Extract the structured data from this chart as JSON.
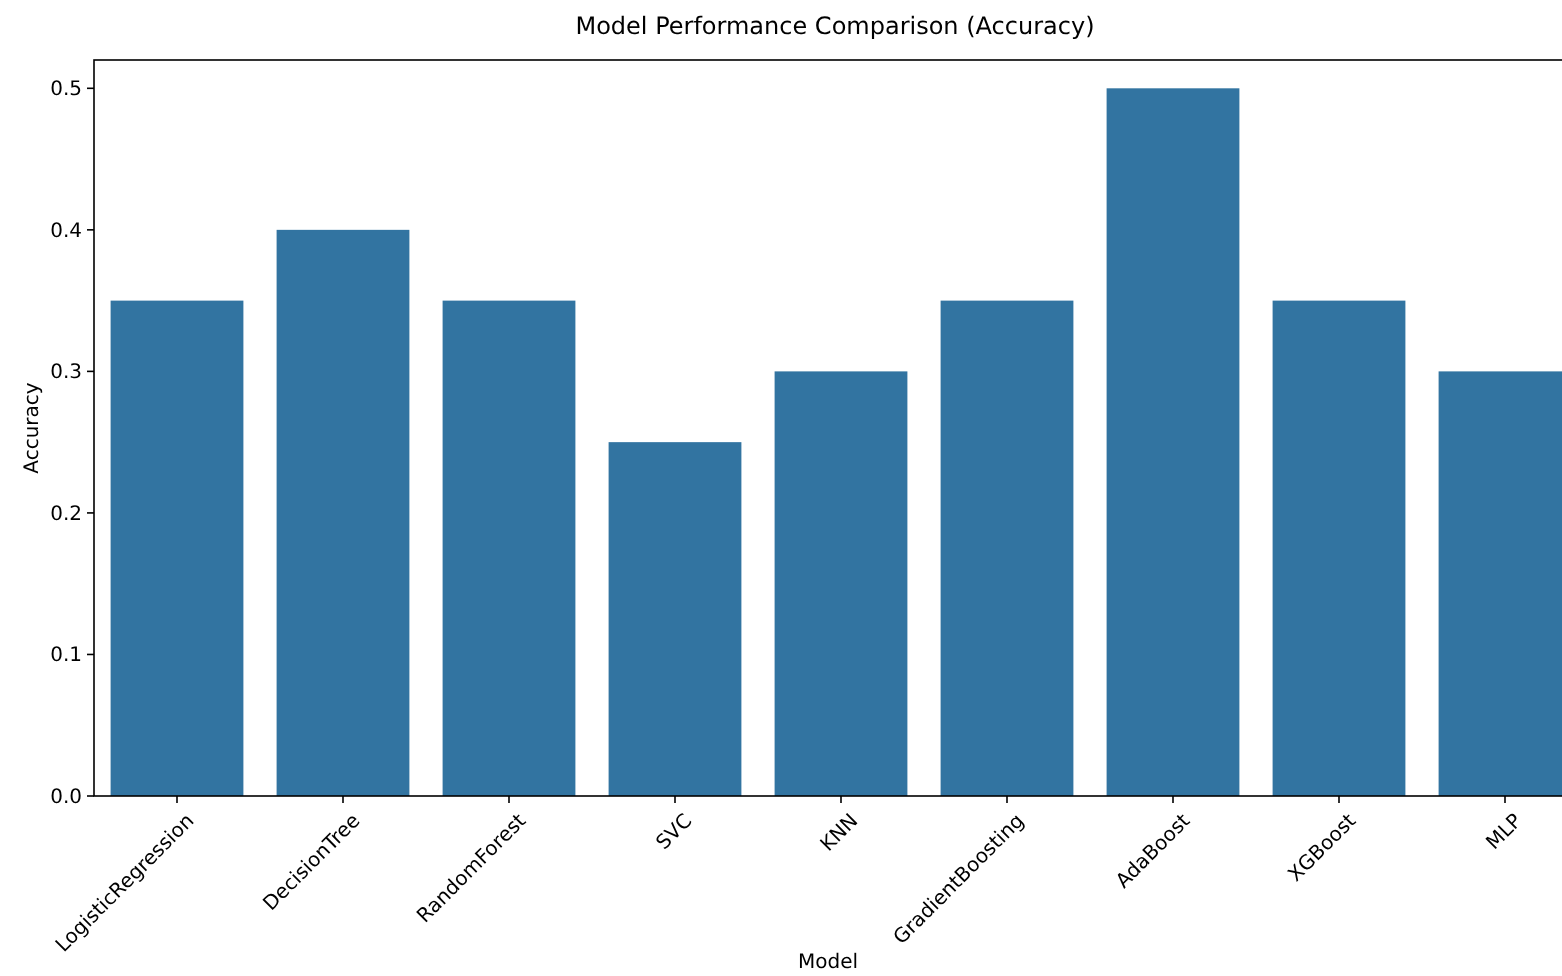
{
  "chart_data": {
    "type": "bar",
    "title": "Model Performance Comparison (Accuracy)",
    "xlabel": "Model",
    "ylabel": "Accuracy",
    "categories": [
      "LogisticRegression",
      "DecisionTree",
      "RandomForest",
      "SVC",
      "KNN",
      "GradientBoosting",
      "AdaBoost",
      "XGBoost",
      "MLP"
    ],
    "values": [
      0.35,
      0.4,
      0.35,
      0.25,
      0.3,
      0.35,
      0.5,
      0.35,
      0.3
    ],
    "color": "#3274a1",
    "ylim": [
      0,
      0.52
    ],
    "yticks": [
      {
        "value": 0,
        "label": "0.0"
      },
      0.1,
      0.2,
      0.3,
      0.4,
      0.5
    ],
    "grid": false
  }
}
